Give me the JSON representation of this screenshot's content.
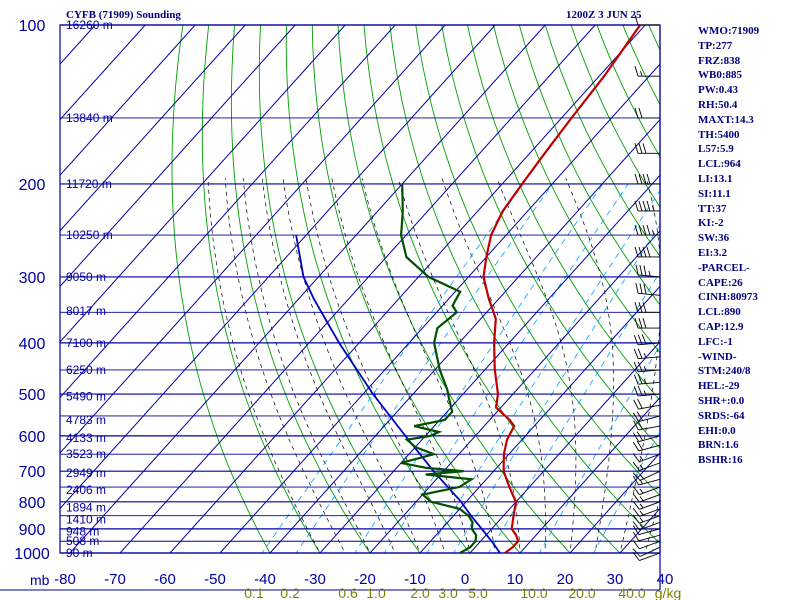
{
  "title": "CYFB (71909) Sounding",
  "timestamp": "1200Z  3 JUN 25",
  "indices": [
    "WMO:71909",
    "TP:277",
    "FRZ:838",
    "WB0:885",
    "PW:0.43",
    "RH:50.4",
    "MAXT:14.3",
    "TH:5400",
    "L57:5.9",
    "LCL:964",
    "LI:13.1",
    "SI:11.1",
    "TT:37",
    "KI:-2",
    "SW:36",
    "EI:3.2",
    "-PARCEL-",
    "CAPE:26",
    "CINH:80973",
    "LCL:890",
    "CAP:12.9",
    "LFC:-1",
    "-WIND-",
    "STM:240/8",
    "HEL:-29",
    "SHR+:0.0",
    "SRDS:-64",
    "EHI:0.0",
    "BRN:1.6",
    "BSHR:16"
  ],
  "colors": {
    "isobar": "#0000a0",
    "isotherm": "#0000a0",
    "dry_adiabat": "#00a000",
    "moist_adiabat": "#000000",
    "mixing_ratio": "#00a0ff",
    "temperature": "#c00000",
    "dewpoint": "#005000",
    "parcel": "#0000c0",
    "label": "#0000a0",
    "mixing_label": "#808000",
    "barb": "#000000"
  },
  "chart_data": {
    "type": "skew-t",
    "xlabel": "mb",
    "pressure_range": [
      1000,
      100
    ],
    "pressure_labels": [
      "100",
      "200",
      "300",
      "400",
      "500",
      "600",
      "700",
      "800",
      "900",
      "1000"
    ],
    "temp_ticks": [
      -80,
      -70,
      -60,
      -50,
      -40,
      -30,
      -20,
      -10,
      0,
      10,
      20,
      30,
      40
    ],
    "temp_tick_labels": [
      "-80",
      "-70",
      "-60",
      "-50",
      "-40",
      "-30",
      "-20",
      "-10",
      "0",
      "10",
      "20",
      "30",
      "40"
    ],
    "height_labels": [
      {
        "p": 1000,
        "label": "90 m"
      },
      {
        "p": 950,
        "label": "508 m"
      },
      {
        "p": 910,
        "label": "948 m"
      },
      {
        "p": 865,
        "label": "1410 m"
      },
      {
        "p": 820,
        "label": "1894 m"
      },
      {
        "p": 760,
        "label": "2406 m"
      },
      {
        "p": 705,
        "label": "2949 m"
      },
      {
        "p": 650,
        "label": "3523 m"
      },
      {
        "p": 605,
        "label": "4133 m"
      },
      {
        "p": 560,
        "label": "4783 m"
      },
      {
        "p": 505,
        "label": "5490 m"
      },
      {
        "p": 450,
        "label": "6250 m"
      },
      {
        "p": 400,
        "label": "7100 m"
      },
      {
        "p": 348,
        "label": "8017 m"
      },
      {
        "p": 300,
        "label": "9050 m"
      },
      {
        "p": 250,
        "label": "10250 m"
      },
      {
        "p": 200,
        "label": "11720 m"
      },
      {
        "p": 150,
        "label": "13840 m"
      },
      {
        "p": 100,
        "label": "16260 m"
      }
    ],
    "mixing_ratio_labels": [
      "0.1",
      "0.2",
      "0.6",
      "1.0",
      "2.0",
      "3.0",
      "5.0",
      "10.0",
      "20.0",
      "40.0",
      "g/kg"
    ],
    "temperature": [
      [
        1000,
        7
      ],
      [
        975,
        7.5
      ],
      [
        950,
        7.5
      ],
      [
        925,
        6
      ],
      [
        900,
        4
      ],
      [
        875,
        3
      ],
      [
        850,
        2
      ],
      [
        800,
        0
      ],
      [
        775,
        -2
      ],
      [
        750,
        -4
      ],
      [
        700,
        -8
      ],
      [
        650,
        -11
      ],
      [
        610,
        -13
      ],
      [
        575,
        -14
      ],
      [
        560,
        -16
      ],
      [
        530,
        -21
      ],
      [
        500,
        -23
      ],
      [
        450,
        -28
      ],
      [
        400,
        -33
      ],
      [
        360,
        -37
      ],
      [
        330,
        -42
      ],
      [
        300,
        -47
      ],
      [
        275,
        -50
      ],
      [
        250,
        -53
      ],
      [
        225,
        -55
      ],
      [
        200,
        -56
      ],
      [
        175,
        -57
      ],
      [
        150,
        -58
      ],
      [
        125,
        -59
      ],
      [
        100,
        -61
      ]
    ],
    "dewpoint": [
      [
        1000,
        -2
      ],
      [
        975,
        -1
      ],
      [
        950,
        -1
      ],
      [
        925,
        -2
      ],
      [
        900,
        -4
      ],
      [
        875,
        -5
      ],
      [
        850,
        -7
      ],
      [
        825,
        -10
      ],
      [
        800,
        -17
      ],
      [
        775,
        -20
      ],
      [
        750,
        -14
      ],
      [
        725,
        -13
      ],
      [
        710,
        -23
      ],
      [
        700,
        -16
      ],
      [
        690,
        -24
      ],
      [
        675,
        -30
      ],
      [
        650,
        -25
      ],
      [
        630,
        -30
      ],
      [
        610,
        -33
      ],
      [
        600,
        -29
      ],
      [
        590,
        -28
      ],
      [
        575,
        -34
      ],
      [
        560,
        -29
      ],
      [
        540,
        -29
      ],
      [
        510,
        -32
      ],
      [
        490,
        -34
      ],
      [
        450,
        -39
      ],
      [
        400,
        -45
      ],
      [
        375,
        -47
      ],
      [
        350,
        -46
      ],
      [
        340,
        -48
      ],
      [
        320,
        -49
      ],
      [
        300,
        -58
      ],
      [
        275,
        -66
      ],
      [
        250,
        -71
      ],
      [
        225,
        -75
      ],
      [
        200,
        -80
      ]
    ],
    "parcel": [
      [
        1000,
        6
      ],
      [
        960,
        3
      ],
      [
        900,
        -2
      ],
      [
        850,
        -6.5
      ],
      [
        800,
        -11
      ],
      [
        700,
        -22
      ],
      [
        600,
        -34
      ],
      [
        500,
        -48
      ],
      [
        400,
        -64
      ],
      [
        330,
        -77
      ],
      [
        300,
        -83
      ],
      [
        250,
        -92
      ]
    ],
    "wind": [
      [
        1000,
        "250",
        10
      ],
      [
        975,
        "245",
        10
      ],
      [
        950,
        "250",
        10
      ],
      [
        925,
        "255",
        10
      ],
      [
        900,
        "255",
        10
      ],
      [
        875,
        "250",
        15
      ],
      [
        850,
        "250",
        15
      ],
      [
        825,
        "250",
        15
      ],
      [
        800,
        "250",
        15
      ],
      [
        775,
        "250",
        15
      ],
      [
        750,
        "250",
        15
      ],
      [
        725,
        "255",
        15
      ],
      [
        700,
        "245",
        15
      ],
      [
        675,
        "250",
        15
      ],
      [
        650,
        "250",
        15
      ],
      [
        625,
        "255",
        20
      ],
      [
        600,
        "255",
        20
      ],
      [
        575,
        "260",
        20
      ],
      [
        550,
        "255",
        20
      ],
      [
        525,
        "260",
        20
      ],
      [
        500,
        "265",
        25
      ],
      [
        475,
        "265",
        25
      ],
      [
        450,
        "265",
        25
      ],
      [
        425,
        "265",
        25
      ],
      [
        400,
        "265",
        30
      ],
      [
        375,
        "270",
        30
      ],
      [
        350,
        "270",
        30
      ],
      [
        325,
        "275",
        30
      ],
      [
        300,
        "275",
        35
      ],
      [
        275,
        "270",
        40
      ],
      [
        250,
        "270",
        45
      ],
      [
        225,
        "270",
        45
      ],
      [
        200,
        "270",
        40
      ],
      [
        175,
        "270",
        30
      ],
      [
        150,
        "270",
        20
      ],
      [
        125,
        "270",
        15
      ],
      [
        100,
        "270",
        10
      ]
    ]
  }
}
